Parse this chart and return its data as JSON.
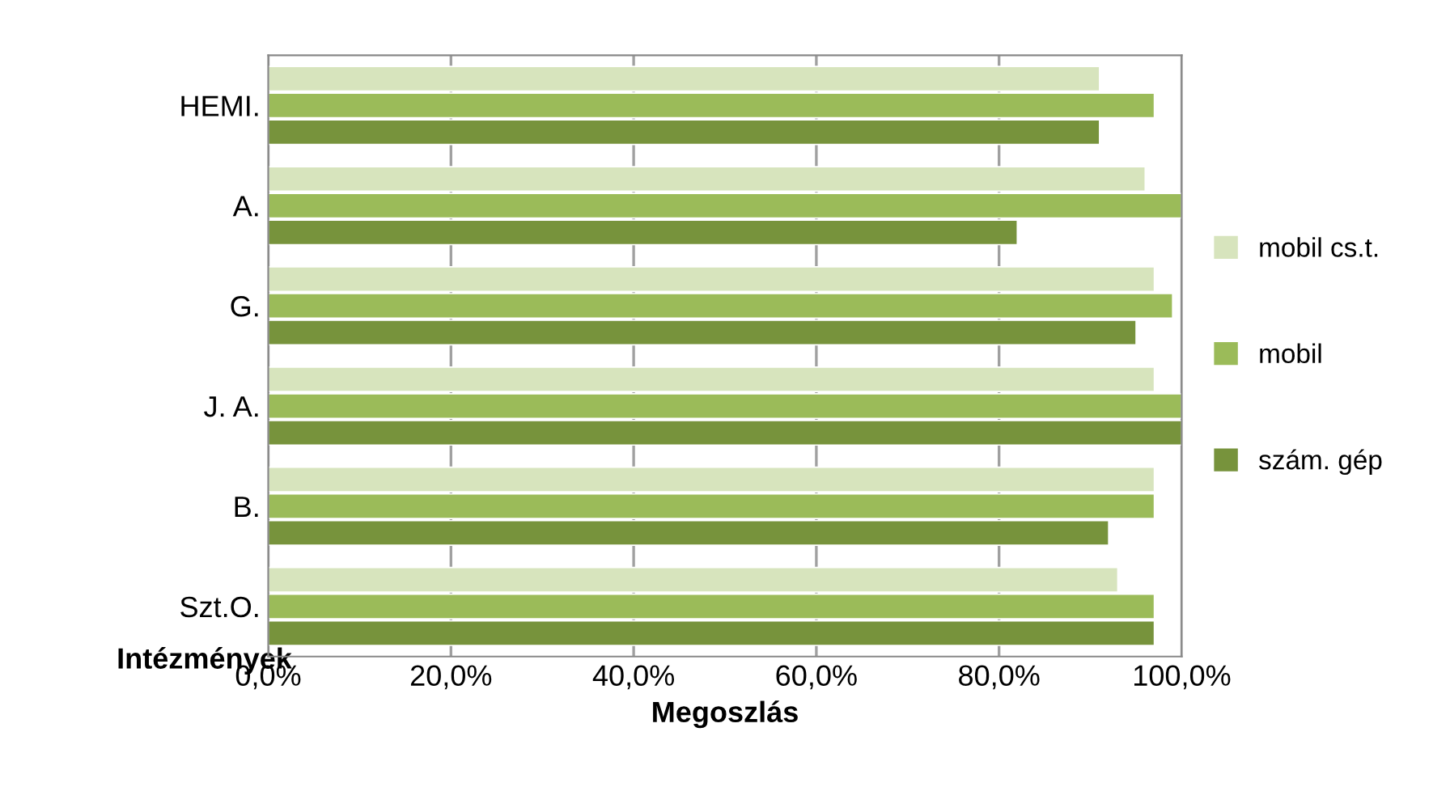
{
  "chart_data": {
    "type": "bar",
    "orientation": "horizontal",
    "xlabel": "Megoszlás",
    "ylabel": "Intézmények",
    "categories": [
      "HEMI.",
      "A.",
      "G.",
      "J. A.",
      "B.",
      "Szt.O."
    ],
    "series": [
      {
        "name": "mobil cs.t.",
        "color": "#d7e4bd",
        "values": [
          91,
          96,
          97,
          97,
          97,
          93
        ]
      },
      {
        "name": "mobil",
        "color": "#9bbb59",
        "values": [
          97,
          100,
          99,
          100,
          97,
          97
        ]
      },
      {
        "name": "szám. gép",
        "color": "#77933c",
        "values": [
          91,
          82,
          95,
          100,
          92,
          97
        ]
      }
    ],
    "xlim": [
      0,
      100
    ],
    "xticks": [
      {
        "value": 0,
        "label": "0,0%"
      },
      {
        "value": 20,
        "label": "20,0%"
      },
      {
        "value": 40,
        "label": "40,0%"
      },
      {
        "value": 60,
        "label": "60,0%"
      },
      {
        "value": 80,
        "label": "80,0%"
      },
      {
        "value": 100,
        "label": "100,0%"
      }
    ],
    "grid": "x",
    "legend": "right"
  }
}
